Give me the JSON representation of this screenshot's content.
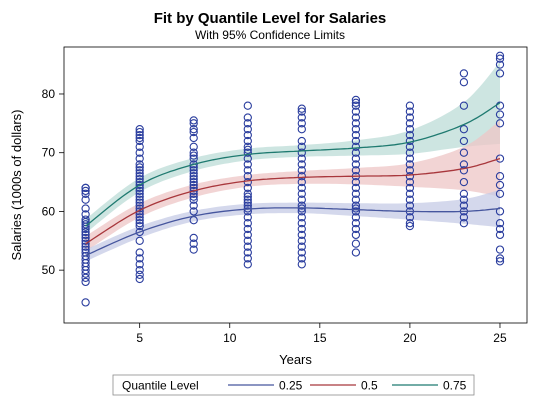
{
  "chart_data": {
    "type": "scatter",
    "title": "Fit by Quantile Level for Salaries",
    "subtitle": "With 95% Confidence Limits",
    "xlabel": "Years",
    "ylabel": "Salaries (1000s of dollars)",
    "xlim": [
      0.8,
      26.5
    ],
    "ylim": [
      41,
      88
    ],
    "xticks": [
      5,
      10,
      15,
      20,
      25
    ],
    "yticks": [
      50,
      60,
      70,
      80
    ],
    "legend": {
      "title": "Quantile Level",
      "placement": "bottom",
      "entries": [
        "0.25",
        "0.5",
        "0.75"
      ]
    },
    "colors": {
      "points": "#2a3d9e",
      "q25": "#46569e",
      "q25_band": "#c5cbe6",
      "q50": "#a8373c",
      "q50_band": "#edc5c6",
      "q75": "#1f7a70",
      "q75_band": "#bcdcd7"
    },
    "series": [
      {
        "name": "0.25",
        "x": [
          2,
          5,
          8,
          11,
          14,
          17,
          20,
          23,
          25
        ],
        "y": [
          52.5,
          56.5,
          59.2,
          60.4,
          60.6,
          60.3,
          60.0,
          60.0,
          60.5
        ],
        "lower": [
          51.5,
          55.5,
          58.3,
          59.5,
          59.7,
          59.2,
          58.6,
          57.9,
          57.3
        ],
        "upper": [
          53.5,
          57.5,
          60.1,
          61.3,
          61.5,
          61.4,
          61.4,
          62.1,
          63.7
        ]
      },
      {
        "name": "0.5",
        "x": [
          2,
          5,
          8,
          11,
          14,
          17,
          20,
          23,
          25
        ],
        "y": [
          54.5,
          60.2,
          63.5,
          65.2,
          65.8,
          66.0,
          66.2,
          67.3,
          69.0
        ],
        "lower": [
          53.2,
          59.0,
          62.4,
          64.2,
          64.7,
          64.6,
          64.2,
          63.6,
          62.5
        ],
        "upper": [
          55.8,
          61.4,
          64.6,
          66.2,
          66.9,
          67.4,
          68.2,
          71.0,
          75.5
        ]
      },
      {
        "name": "0.75",
        "x": [
          2,
          5,
          8,
          11,
          14,
          17,
          20,
          23,
          25
        ],
        "y": [
          57.5,
          64.5,
          68.0,
          69.7,
          70.3,
          70.8,
          71.8,
          74.8,
          78.5
        ],
        "lower": [
          56.3,
          63.3,
          66.9,
          68.7,
          69.3,
          69.5,
          69.8,
          71.0,
          71.5
        ],
        "upper": [
          58.7,
          65.7,
          69.1,
          70.7,
          71.3,
          72.1,
          73.8,
          78.6,
          85.5
        ]
      }
    ],
    "points": [
      {
        "x": 2,
        "y": [
          44.5,
          48,
          48.7,
          49.4,
          50,
          50.6,
          51.2,
          51.8,
          52.4,
          53,
          53.5,
          54,
          54.5,
          55,
          55.5,
          56,
          56.5,
          57,
          57.4,
          57.8,
          58.2,
          58.6,
          59.5,
          60.5,
          62,
          63,
          63.5,
          64,
          64
        ]
      },
      {
        "x": 5,
        "y": [
          48.5,
          49.2,
          50,
          51,
          52,
          53,
          55,
          56.5,
          57.5,
          58,
          58.5,
          59,
          59.5,
          60,
          60.5,
          61,
          61.5,
          62,
          62.5,
          63,
          63.5,
          64,
          64.5,
          65,
          65.5,
          66,
          66.5,
          67,
          67.5,
          68,
          69,
          70,
          71,
          72,
          72.5,
          73,
          73.5,
          74
        ]
      },
      {
        "x": 8,
        "y": [
          53.5,
          54.5,
          55.5,
          58.5,
          60,
          61,
          62,
          62.5,
          63,
          63.5,
          64,
          64.5,
          65,
          65.5,
          66,
          66.5,
          67,
          67.5,
          68,
          69,
          69.5,
          70,
          71,
          72.5,
          73.5,
          74,
          75,
          75.5
        ]
      },
      {
        "x": 11,
        "y": [
          51,
          52,
          53,
          54,
          55,
          56,
          57,
          58,
          59,
          60,
          60.5,
          61,
          61.5,
          62,
          62.5,
          63,
          64,
          65,
          66,
          67,
          68,
          69,
          70,
          70.5,
          71,
          72,
          73,
          74,
          75,
          76,
          78
        ]
      },
      {
        "x": 14,
        "y": [
          51,
          52,
          53,
          54,
          55,
          56,
          57,
          58,
          59,
          60,
          60.5,
          61,
          62,
          63,
          64,
          65,
          66,
          67,
          68,
          69,
          70,
          71,
          72,
          74,
          75,
          76,
          77,
          77.5
        ]
      },
      {
        "x": 17,
        "y": [
          53,
          54.5,
          56,
          57,
          58,
          59,
          60,
          60.5,
          61,
          62,
          63,
          64,
          65,
          66,
          67,
          68,
          69,
          70,
          71,
          72,
          73,
          74,
          75,
          76,
          77,
          78,
          78.5,
          79
        ]
      },
      {
        "x": 20,
        "y": [
          57.5,
          58,
          59,
          60,
          61,
          62,
          63,
          64,
          65,
          66,
          67,
          68,
          69,
          70,
          71,
          72,
          73,
          74,
          75,
          76,
          77,
          78
        ]
      },
      {
        "x": 23,
        "y": [
          58,
          59,
          60,
          61,
          62,
          63,
          65,
          67,
          68,
          70,
          72,
          74,
          78,
          82,
          83.5
        ]
      },
      {
        "x": 25,
        "y": [
          51.5,
          52,
          53.5,
          56,
          57,
          58,
          60,
          63,
          64.5,
          66,
          69,
          75,
          76.5,
          78,
          83.5,
          85,
          86,
          86.5
        ]
      }
    ]
  }
}
